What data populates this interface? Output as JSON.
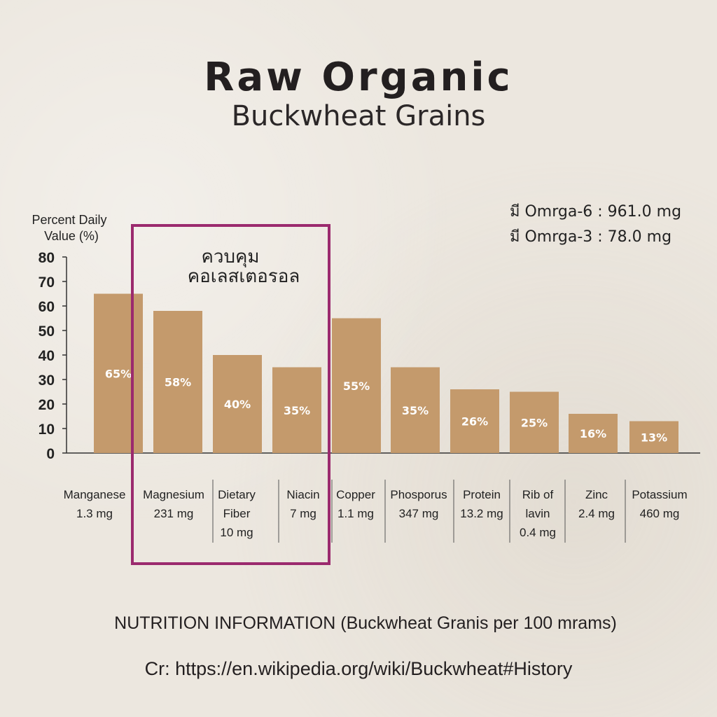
{
  "header": {
    "title": "Raw Organic",
    "subtitle": "Buckwheat Grains"
  },
  "notes": {
    "omega6": "มี Omrga-6 : 961.0 mg",
    "omega3": "มี Omrga-3 : 78.0 mg"
  },
  "highlight": {
    "line1": "ควบคุม",
    "line2": "คอเลสเตอรอล",
    "color": "#9b2a6e"
  },
  "footer": {
    "info": "NUTRITION INFORMATION (Buckwheat Granis per 100 mrams)",
    "credit": "Cr: https://en.wikipedia.org/wiki/Buckwheat#History"
  },
  "chart_data": {
    "type": "bar",
    "ylabel": [
      "Percent Daily",
      "Value (%)"
    ],
    "ylim": [
      0,
      80
    ],
    "yticks": [
      0,
      10,
      20,
      30,
      40,
      50,
      60,
      70,
      80
    ],
    "grid": false,
    "bar_color": "#c49a6c",
    "categories": [
      [
        "Manganese",
        "1.3 mg"
      ],
      [
        "Magnesium",
        "231 mg"
      ],
      [
        "Dietary",
        "Fiber",
        "10 mg"
      ],
      [
        "Niacin",
        "7 mg"
      ],
      [
        "Copper",
        "1.1 mg"
      ],
      [
        "Phosporus",
        "347 mg"
      ],
      [
        "Protein",
        "13.2 mg"
      ],
      [
        "Rib of",
        "lavin",
        "0.4 mg"
      ],
      [
        "Zinc",
        "2.4 mg"
      ],
      [
        "Potassium",
        "460 mg"
      ]
    ],
    "values": [
      65,
      58,
      40,
      35,
      55,
      35,
      26,
      25,
      16,
      13
    ],
    "value_labels": [
      "65%",
      "58%",
      "40%",
      "35%",
      "55%",
      "35%",
      "26%",
      "25%",
      "16%",
      "13%"
    ],
    "highlighted_categories": [
      "Magnesium",
      "Dietary Fiber",
      "Niacin"
    ]
  }
}
